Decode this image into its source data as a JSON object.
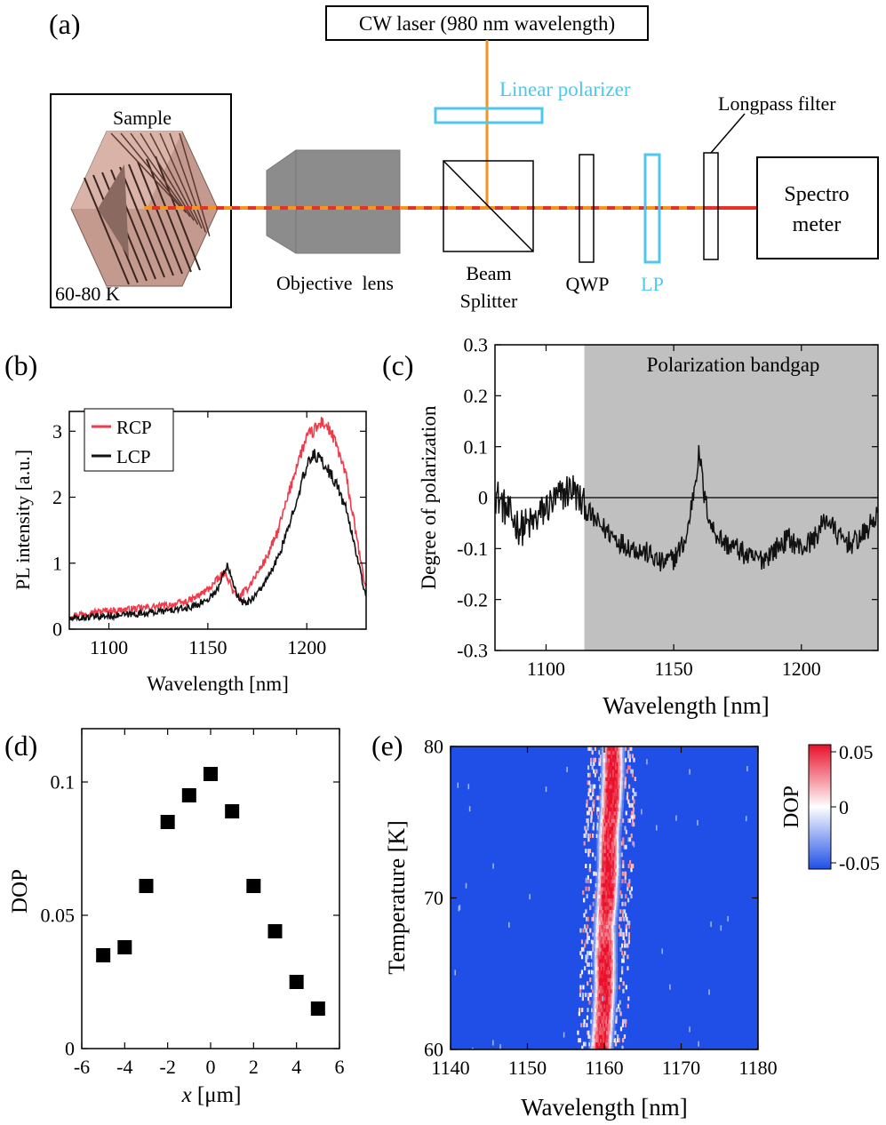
{
  "panel_labels": {
    "a": "(a)",
    "b": "(b)",
    "c": "(c)",
    "d": "(d)",
    "e": "(e)"
  },
  "setup": {
    "laser_label": "CW laser (980 nm wavelength)",
    "linear_polarizer_label": "Linear polarizer",
    "longpass_label": "Longpass filter",
    "sample_label": "Sample",
    "temperature_label": "60-80 K",
    "objective_label": "Objective  lens",
    "beam_splitter_line1": "Beam",
    "beam_splitter_line2": "Splitter",
    "qwp_label": "QWP",
    "lp_label": "LP",
    "spectrometer_line1": "Spectro",
    "spectrometer_line2": "meter",
    "colors": {
      "pump": "#f7931e",
      "signal": "#e8302a",
      "polarizer": "#4dc8ec",
      "objective": "#8c8c8c",
      "sample": "#c49a8e"
    }
  },
  "chart_data": [
    {
      "id": "b",
      "type": "line",
      "xlabel": "Wavelength [nm]",
      "ylabel": "PL intensity [a.u.]",
      "xlim": [
        1080,
        1230
      ],
      "ylim": [
        0,
        3.3
      ],
      "xticks": [
        1100,
        1150,
        1200
      ],
      "yticks": [
        0,
        1,
        2,
        3
      ],
      "legend": "top-left",
      "series": [
        {
          "name": "RCP",
          "color": "#f23a4a",
          "x": [
            1080,
            1090,
            1100,
            1110,
            1120,
            1130,
            1140,
            1145,
            1150,
            1155,
            1158,
            1160,
            1163,
            1166,
            1170,
            1175,
            1180,
            1185,
            1190,
            1195,
            1200,
            1205,
            1208,
            1212,
            1216,
            1220,
            1224,
            1228,
            1230
          ],
          "y": [
            0.2,
            0.25,
            0.28,
            0.3,
            0.33,
            0.36,
            0.42,
            0.5,
            0.6,
            0.75,
            0.85,
            0.8,
            0.55,
            0.48,
            0.62,
            0.85,
            1.1,
            1.45,
            1.95,
            2.5,
            2.9,
            3.05,
            3.15,
            3.0,
            2.7,
            2.3,
            1.6,
            0.9,
            0.6
          ]
        },
        {
          "name": "LCP",
          "color": "#111111",
          "x": [
            1080,
            1090,
            1100,
            1110,
            1120,
            1130,
            1140,
            1145,
            1150,
            1155,
            1158,
            1160,
            1163,
            1166,
            1170,
            1175,
            1180,
            1185,
            1190,
            1195,
            1200,
            1203,
            1206,
            1210,
            1215,
            1220,
            1224,
            1228,
            1230
          ],
          "y": [
            0.15,
            0.18,
            0.2,
            0.22,
            0.25,
            0.28,
            0.32,
            0.38,
            0.45,
            0.6,
            0.85,
            1.0,
            0.7,
            0.42,
            0.4,
            0.55,
            0.75,
            1.05,
            1.45,
            2.0,
            2.45,
            2.65,
            2.6,
            2.45,
            2.2,
            1.8,
            1.3,
            0.75,
            0.45
          ]
        }
      ]
    },
    {
      "id": "c",
      "type": "line",
      "xlabel": "Wavelength [nm]",
      "ylabel": "Degree of polarization",
      "xlim": [
        1080,
        1230
      ],
      "ylim": [
        -0.3,
        0.3
      ],
      "xticks": [
        1100,
        1150,
        1200
      ],
      "yticks": [
        -0.3,
        -0.2,
        -0.1,
        0,
        0.1,
        0.2,
        0.3
      ],
      "shaded_region": {
        "x_start": 1115,
        "x_end": 1230,
        "label": "Polarization bandgap"
      },
      "series": [
        {
          "name": "DOP",
          "color": "#111111",
          "x": [
            1080,
            1085,
            1090,
            1095,
            1100,
            1105,
            1110,
            1115,
            1120,
            1125,
            1130,
            1135,
            1140,
            1145,
            1150,
            1155,
            1158,
            1160,
            1162,
            1165,
            1170,
            1175,
            1180,
            1185,
            1190,
            1195,
            1200,
            1205,
            1210,
            1215,
            1220,
            1225,
            1230
          ],
          "y": [
            0.01,
            -0.03,
            -0.06,
            -0.05,
            -0.02,
            0.0,
            0.02,
            -0.02,
            -0.05,
            -0.07,
            -0.09,
            -0.1,
            -0.11,
            -0.13,
            -0.12,
            -0.08,
            0.02,
            0.09,
            0.0,
            -0.06,
            -0.09,
            -0.1,
            -0.12,
            -0.12,
            -0.1,
            -0.08,
            -0.1,
            -0.08,
            -0.04,
            -0.08,
            -0.09,
            -0.07,
            -0.03
          ]
        }
      ]
    },
    {
      "id": "d",
      "type": "scatter",
      "xlabel_var": "x",
      "xlabel_unit": " [μm]",
      "ylabel": "DOP",
      "xlim": [
        -6,
        6
      ],
      "ylim": [
        0,
        0.12
      ],
      "xticks": [
        -6,
        -4,
        -2,
        0,
        2,
        4,
        6
      ],
      "yticks": [
        0,
        0.05,
        0.1
      ],
      "ytick_labels": [
        "0",
        "0.05",
        "0.1"
      ],
      "x": [
        -5,
        -4,
        -3,
        -2,
        -1,
        0,
        1,
        2,
        3,
        4,
        5
      ],
      "y": [
        0.035,
        0.038,
        0.061,
        0.085,
        0.095,
        0.103,
        0.089,
        0.061,
        0.044,
        0.025,
        0.015
      ]
    },
    {
      "id": "e",
      "type": "heatmap",
      "xlabel": "Wavelength [nm]",
      "ylabel": "Temperature [K]",
      "xlim": [
        1140,
        1180
      ],
      "ylim": [
        60,
        80
      ],
      "xticks": [
        1140,
        1150,
        1160,
        1170,
        1180
      ],
      "yticks": [
        60,
        70,
        80
      ],
      "colorbar": {
        "label": "DOP",
        "min": -0.05,
        "max": 0.05,
        "ticks": [
          "0.05",
          "0",
          "-0.05"
        ],
        "colors": [
          "#1f4fe6",
          "#ffffff",
          "#e8102a"
        ]
      },
      "background_value": -0.05,
      "ridge": {
        "temperature": [
          60,
          62,
          64,
          66,
          68,
          70,
          72,
          74,
          76,
          78,
          80
        ],
        "center_nm": [
          1159.5,
          1159.8,
          1160.0,
          1160.0,
          1160.0,
          1160.3,
          1160.5,
          1160.5,
          1160.8,
          1161.0,
          1161.0
        ],
        "peak_dop": [
          0.05,
          0.04,
          0.05,
          0.05,
          0.03,
          0.05,
          0.05,
          0.04,
          0.05,
          0.05,
          0.04
        ]
      }
    }
  ]
}
